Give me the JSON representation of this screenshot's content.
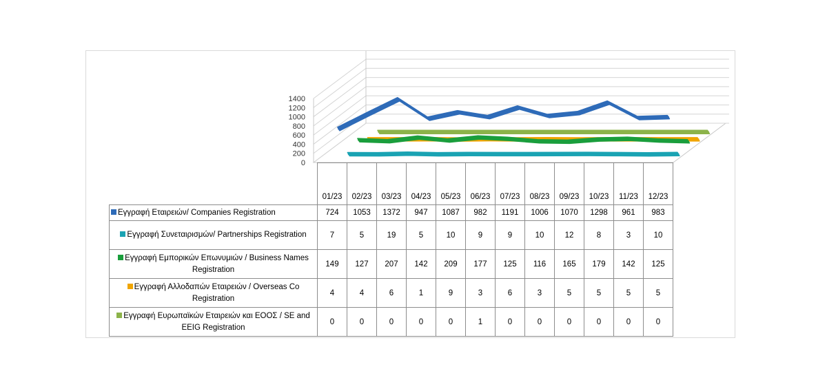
{
  "chart_data": {
    "type": "line",
    "style": "3d",
    "categories": [
      "01/23",
      "02/23",
      "03/23",
      "04/23",
      "05/23",
      "06/23",
      "07/23",
      "08/23",
      "09/23",
      "10/23",
      "11/23",
      "12/23"
    ],
    "yticks": [
      0,
      200,
      400,
      600,
      800,
      1000,
      1200,
      1400
    ],
    "ylim": [
      0,
      1400
    ],
    "grid": true,
    "legend": "table",
    "series": [
      {
        "name": "Εγγραφή  Εταιρειών/ Companies Registration",
        "color": "#2e6bb8",
        "values": [
          724,
          1053,
          1372,
          947,
          1087,
          982,
          1191,
          1006,
          1070,
          1298,
          961,
          983
        ]
      },
      {
        "name": "Εγγραφή  Συνεταιρισμών/  Partnerships Registration",
        "color": "#1aa3b3",
        "values": [
          7,
          5,
          19,
          5,
          10,
          9,
          9,
          10,
          12,
          8,
          3,
          10
        ]
      },
      {
        "name": "Εγγραφή  Εμπορικών  Επωνυμιών  / Business Names Registration",
        "color": "#1a9e3c",
        "values": [
          149,
          127,
          207,
          142,
          209,
          177,
          125,
          116,
          165,
          179,
          142,
          125
        ]
      },
      {
        "name": "Εγγραφή  Αλλοδαπών  Εταιρειών  / Overseas Co Registration",
        "color": "#f0a500",
        "values": [
          4,
          4,
          6,
          1,
          9,
          3,
          6,
          3,
          5,
          5,
          5,
          5
        ]
      },
      {
        "name": "Εγγραφή  Ευρωπαϊκών  Εταιρειών και ΕΟΟΣ / SE and EEIG Registration",
        "color": "#8cb34a",
        "values": [
          0,
          0,
          0,
          0,
          0,
          1,
          0,
          0,
          0,
          0,
          0,
          0
        ]
      }
    ]
  }
}
